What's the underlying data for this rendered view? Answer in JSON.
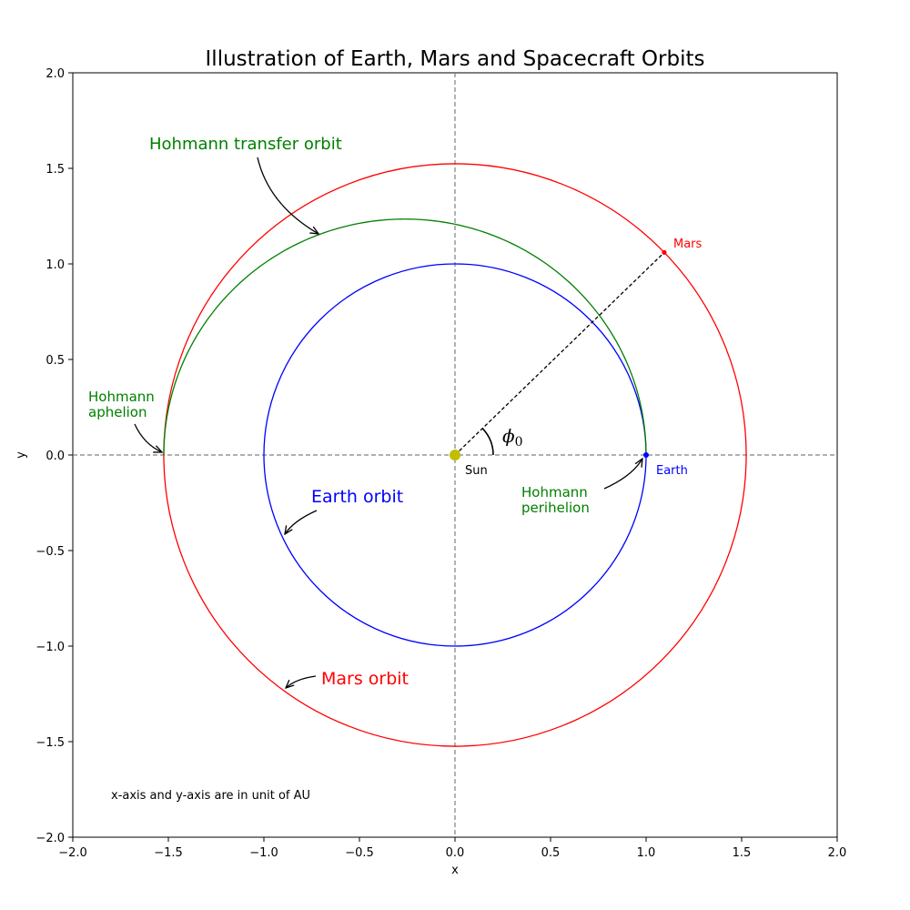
{
  "chart_data": {
    "type": "line",
    "title": "Illustration of Earth, Mars and Spacecraft Orbits",
    "xlabel": "x",
    "ylabel": "y",
    "xlim": [
      -2.0,
      2.0
    ],
    "ylim": [
      -2.0,
      2.0
    ],
    "grid": false,
    "xticks": [
      -2.0,
      -1.5,
      -1.0,
      -0.5,
      0.0,
      0.5,
      1.0,
      1.5,
      2.0
    ],
    "yticks": [
      -2.0,
      -1.5,
      -1.0,
      -0.5,
      0.0,
      0.5,
      1.0,
      1.5,
      2.0
    ],
    "xtick_labels": [
      "−2.0",
      "−1.5",
      "−1.0",
      "−0.5",
      "0.0",
      "0.5",
      "1.0",
      "1.5",
      "2.0"
    ],
    "ytick_labels": [
      "−2.0",
      "−1.5",
      "−1.0",
      "−0.5",
      "0.0",
      "0.5",
      "1.0",
      "1.5",
      "2.0"
    ],
    "reference_lines": {
      "x": 0.0,
      "y": 0.0,
      "color": "#808080",
      "style": "dashed"
    },
    "orbits": {
      "earth": {
        "radius": 1.0,
        "color": "#0000ff"
      },
      "mars": {
        "radius": 1.524,
        "color": "#ff0000"
      },
      "hohmann": {
        "semi_major": 1.262,
        "center_x": -0.262,
        "b": 1.2345,
        "color": "#008000",
        "from_deg": 0,
        "to_deg": 180
      }
    },
    "bodies": {
      "sun": {
        "x": 0.0,
        "y": 0.0,
        "label": "Sun",
        "color": "#bfbf00"
      },
      "earth": {
        "x": 1.0,
        "y": 0.0,
        "label": "Earth",
        "color": "#0000ff"
      },
      "mars": {
        "x": 1.095,
        "y": 1.06,
        "label": "Mars",
        "color": "#ff0000"
      }
    },
    "phi_label": "ϕ",
    "phi_subscript": "0",
    "annotations": {
      "hohmann_transfer": {
        "text": "Hohmann transfer orbit",
        "color": "#008000"
      },
      "hohmann_aphelion": {
        "lines": [
          "Hohmann",
          "aphelion"
        ],
        "color": "#008000"
      },
      "hohmann_perihelion": {
        "lines": [
          "Hohmann",
          "perihelion"
        ],
        "color": "#008000"
      },
      "earth_orbit": {
        "text": "Earth orbit",
        "color": "#0000ff"
      },
      "mars_orbit": {
        "text": "Mars orbit",
        "color": "#ff0000"
      }
    },
    "units_note": "x-axis and y-axis are in unit of AU"
  }
}
